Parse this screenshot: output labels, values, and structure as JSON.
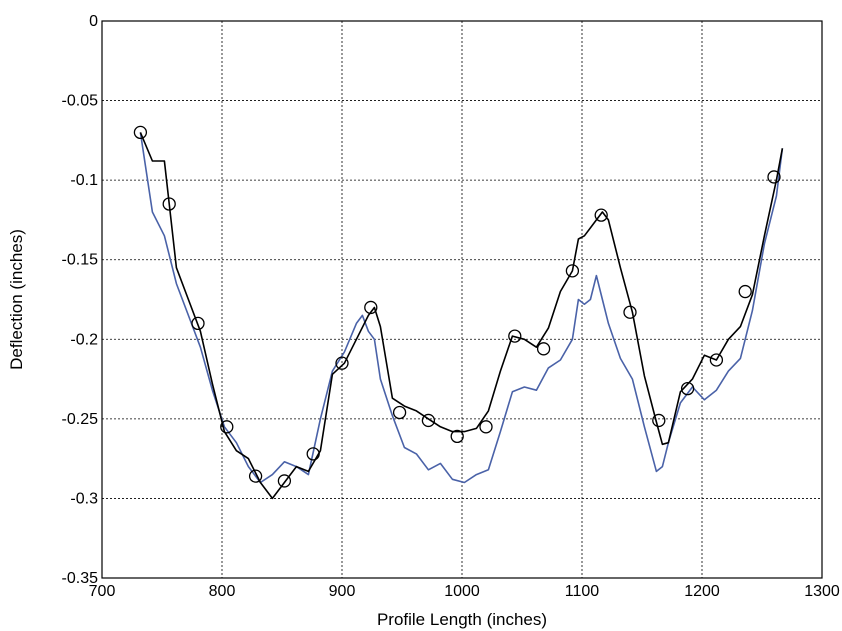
{
  "chart_data": {
    "type": "line",
    "title": "",
    "xlabel": "Profile Length (inches)",
    "ylabel": "Deflection (inches)",
    "xlim": [
      700,
      1300
    ],
    "ylim": [
      -0.35,
      0
    ],
    "xticks": [
      700,
      800,
      900,
      1000,
      1100,
      1200,
      1300
    ],
    "xtick_labels": [
      "700",
      "800",
      "900",
      "1000",
      "1100",
      "1200",
      "1300"
    ],
    "yticks": [
      0,
      -0.05,
      -0.1,
      -0.15,
      -0.2,
      -0.25,
      -0.3,
      -0.35
    ],
    "ytick_labels": [
      "0",
      "-0.05",
      "-0.1",
      "-0.15",
      "-0.2",
      "-0.25",
      "-0.3",
      "-0.35"
    ],
    "grid": true,
    "series": [
      {
        "color": "#4a62a8",
        "marker": "none",
        "x": [
          732,
          742,
          752,
          762,
          772,
          782,
          792,
          802,
          812,
          822,
          832,
          842,
          852,
          862,
          872,
          882,
          892,
          902,
          912,
          917,
          922,
          927,
          932,
          942,
          952,
          962,
          972,
          982,
          992,
          1002,
          1012,
          1022,
          1032,
          1042,
          1052,
          1062,
          1072,
          1082,
          1092,
          1097,
          1102,
          1107,
          1112,
          1117,
          1122,
          1132,
          1142,
          1152,
          1162,
          1167,
          1172,
          1182,
          1192,
          1202,
          1212,
          1222,
          1232,
          1242,
          1252,
          1262,
          1267
        ],
        "y": [
          -0.07,
          -0.12,
          -0.135,
          -0.165,
          -0.185,
          -0.205,
          -0.232,
          -0.255,
          -0.265,
          -0.28,
          -0.29,
          -0.285,
          -0.277,
          -0.28,
          -0.285,
          -0.25,
          -0.22,
          -0.208,
          -0.19,
          -0.185,
          -0.195,
          -0.2,
          -0.225,
          -0.248,
          -0.268,
          -0.272,
          -0.282,
          -0.278,
          -0.288,
          -0.29,
          -0.285,
          -0.282,
          -0.258,
          -0.233,
          -0.23,
          -0.232,
          -0.218,
          -0.213,
          -0.2,
          -0.175,
          -0.178,
          -0.175,
          -0.16,
          -0.175,
          -0.19,
          -0.212,
          -0.225,
          -0.255,
          -0.283,
          -0.28,
          -0.265,
          -0.24,
          -0.23,
          -0.238,
          -0.232,
          -0.22,
          -0.212,
          -0.182,
          -0.14,
          -0.11,
          -0.08
        ]
      },
      {
        "color": "#000000",
        "marker": "none",
        "x": [
          732,
          742,
          752,
          762,
          772,
          782,
          792,
          802,
          812,
          822,
          832,
          842,
          852,
          862,
          872,
          882,
          892,
          902,
          912,
          922,
          927,
          932,
          942,
          952,
          962,
          972,
          982,
          992,
          1002,
          1012,
          1022,
          1032,
          1042,
          1052,
          1062,
          1072,
          1082,
          1092,
          1097,
          1102,
          1107,
          1112,
          1117,
          1122,
          1132,
          1142,
          1152,
          1162,
          1167,
          1172,
          1182,
          1192,
          1202,
          1212,
          1222,
          1232,
          1242,
          1252,
          1262,
          1267
        ],
        "y": [
          -0.07,
          -0.088,
          -0.088,
          -0.155,
          -0.175,
          -0.195,
          -0.228,
          -0.258,
          -0.27,
          -0.275,
          -0.29,
          -0.3,
          -0.29,
          -0.28,
          -0.283,
          -0.27,
          -0.222,
          -0.215,
          -0.2,
          -0.185,
          -0.18,
          -0.192,
          -0.237,
          -0.242,
          -0.245,
          -0.25,
          -0.255,
          -0.258,
          -0.258,
          -0.256,
          -0.245,
          -0.22,
          -0.198,
          -0.2,
          -0.205,
          -0.193,
          -0.17,
          -0.157,
          -0.137,
          -0.135,
          -0.13,
          -0.125,
          -0.12,
          -0.125,
          -0.155,
          -0.183,
          -0.223,
          -0.252,
          -0.266,
          -0.265,
          -0.233,
          -0.225,
          -0.21,
          -0.213,
          -0.2,
          -0.192,
          -0.172,
          -0.135,
          -0.1,
          -0.08
        ]
      },
      {
        "color": "#000000",
        "marker": "open-circle",
        "line": "none",
        "x": [
          732,
          756,
          780,
          804,
          828,
          852,
          876,
          900,
          924,
          948,
          972,
          996,
          1020,
          1044,
          1068,
          1092,
          1116,
          1140,
          1164,
          1188,
          1212,
          1236,
          1260
        ],
        "y": [
          -0.07,
          -0.115,
          -0.19,
          -0.255,
          -0.286,
          -0.289,
          -0.272,
          -0.215,
          -0.18,
          -0.246,
          -0.251,
          -0.261,
          -0.255,
          -0.198,
          -0.206,
          -0.157,
          -0.122,
          -0.183,
          -0.251,
          -0.231,
          -0.213,
          -0.17,
          -0.098
        ]
      }
    ]
  }
}
